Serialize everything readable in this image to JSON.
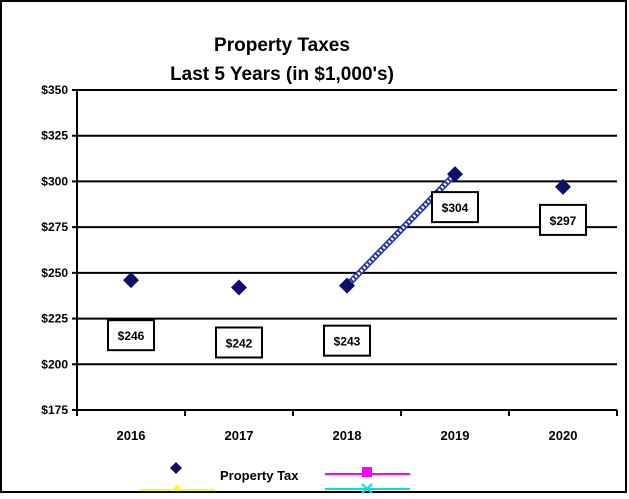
{
  "chart_data": {
    "type": "line",
    "title": "Property Taxes",
    "subtitle": "Last 5 Years (in $1,000's)",
    "categories": [
      "2016",
      "2017",
      "2018",
      "2019",
      "2020"
    ],
    "series": [
      {
        "name": "Property Tax",
        "values": [
          246,
          242,
          243,
          304,
          297
        ],
        "marker": "diamond",
        "color": "#0d0f6b",
        "data_labels": [
          "$246",
          "$242",
          "$243",
          "$304",
          "$297"
        ]
      }
    ],
    "trend_segment": {
      "from": "2018",
      "to": "2019",
      "style": "hatched",
      "color": "#2b2fa0"
    },
    "y_ticks": [
      "$350",
      "$325",
      "$300",
      "$275",
      "$250",
      "$225",
      "$200",
      "$175"
    ],
    "y_tick_values": [
      350,
      325,
      300,
      275,
      250,
      225,
      200,
      175
    ],
    "ylim": [
      175,
      350
    ],
    "grid": true,
    "legend": {
      "placement": "bottom",
      "entries": [
        {
          "label": "Property Tax",
          "marker": "diamond",
          "color": "#0d0f6b"
        },
        {
          "label": "",
          "marker": "square",
          "color": "#ff00ff"
        },
        {
          "label": "",
          "marker": "triangle",
          "color": "#ffff00"
        },
        {
          "label": "",
          "marker": "x",
          "color": "#00e0e0"
        }
      ]
    }
  }
}
